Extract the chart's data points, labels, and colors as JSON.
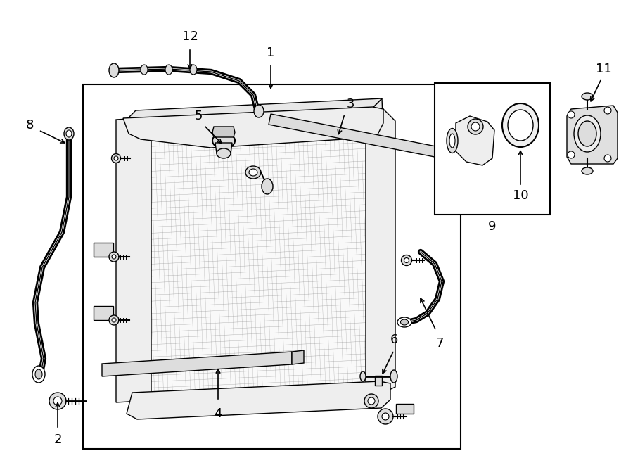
{
  "bg_color": "#ffffff",
  "line_color": "#000000",
  "fig_width": 9.0,
  "fig_height": 6.61,
  "dpi": 100,
  "label_fontsize": 13
}
